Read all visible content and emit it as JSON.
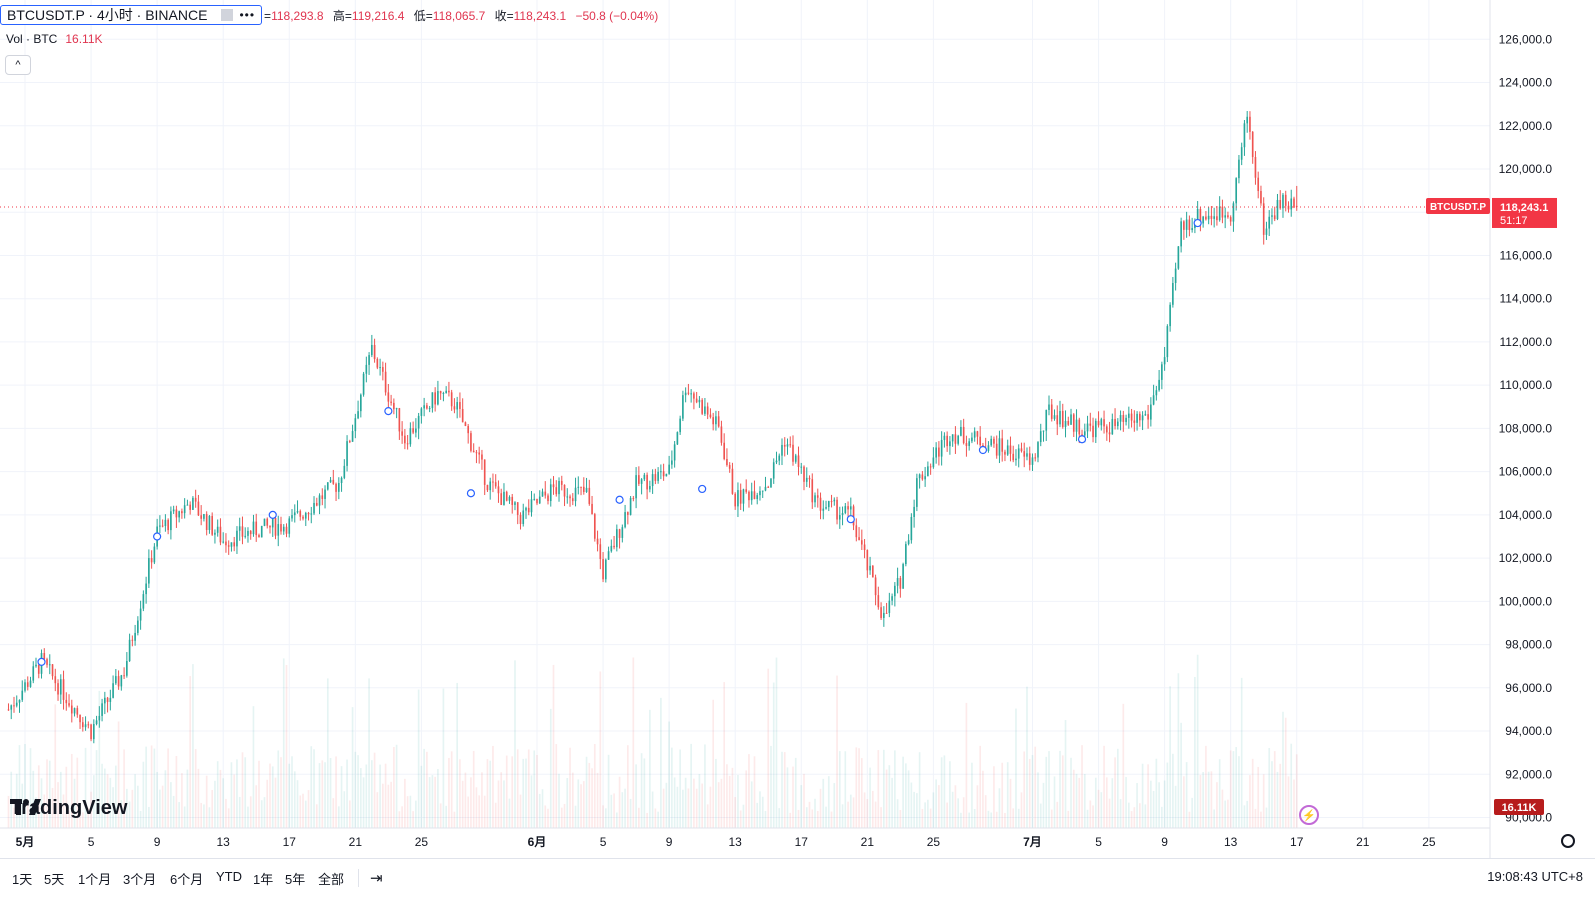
{
  "legend": {
    "symbol": "BTCUSDT.P · 4小时 · BINANCE",
    "menu": "•••",
    "ohlc_open_label": "=",
    "open": "118,293.8",
    "high_label": "高=",
    "high": "119,216.4",
    "low_label": "低=",
    "low": "118,065.7",
    "close_label": "收=",
    "close": "118,243.1",
    "change": "−50.8 (−0.04%)",
    "vol_label": "Vol · BTC",
    "vol_value": "16.11K"
  },
  "price_axis": {
    "labels": [
      "126,000.0",
      "124,000.0",
      "122,000.0",
      "120,000.0",
      "118,000.0",
      "116,000.0",
      "114,000.0",
      "112,000.0",
      "110,000.0",
      "108,000.0",
      "106,000.0",
      "104,000.0",
      "102,000.0",
      "100,000.0",
      "98,000.0",
      "96,000.0",
      "94,000.0",
      "92,000.0",
      "90,000.0"
    ],
    "current_symbol_tag": "BTCUSDT.P",
    "current_price_tag": "118,243.1",
    "countdown": "51:17",
    "volume_tag": "16.11K"
  },
  "time_axis": {
    "labels": [
      "5月",
      "5",
      "9",
      "13",
      "17",
      "21",
      "25",
      "6月",
      "5",
      "9",
      "13",
      "17",
      "21",
      "25",
      "7月",
      "5",
      "9",
      "13",
      "17",
      "21",
      "25"
    ]
  },
  "range_buttons": [
    "1天",
    "5天",
    "1个月",
    "3个月",
    "6个月",
    "YTD",
    "1年",
    "5年",
    "全部"
  ],
  "goto_icon": "calendar-goto-icon",
  "clock": "19:08:43 UTC+8",
  "logo_text": "TradingView",
  "colors": {
    "up": "#26a69a",
    "down": "#ef5350",
    "accent": "#2962ff",
    "price_line": "#f23645"
  },
  "chart_data": {
    "type": "candlestick",
    "title": "BTCUSDT.P · 4小时 · BINANCE",
    "xlabel": "",
    "ylabel": "",
    "ylim": [
      89700,
      126800
    ],
    "x_ticks": [
      "5月",
      "5",
      "9",
      "13",
      "17",
      "21",
      "25",
      "6月",
      "5",
      "9",
      "13",
      "17",
      "21",
      "25",
      "7月",
      "5",
      "9",
      "13",
      "17",
      "21",
      "25"
    ],
    "keypoints": [
      {
        "date": "4/30",
        "close": 95000
      },
      {
        "date": "5/2",
        "close": 97200
      },
      {
        "date": "5/5",
        "close": 94000
      },
      {
        "date": "5/7",
        "close": 96800
      },
      {
        "date": "5/9",
        "close": 103200
      },
      {
        "date": "5/11",
        "close": 104600
      },
      {
        "date": "5/13",
        "close": 102800
      },
      {
        "date": "5/15",
        "close": 103300
      },
      {
        "date": "5/17",
        "close": 103600
      },
      {
        "date": "5/20",
        "close": 105500
      },
      {
        "date": "5/22",
        "close": 111700
      },
      {
        "date": "5/24",
        "close": 107500
      },
      {
        "date": "5/26",
        "close": 109600
      },
      {
        "date": "5/27",
        "close": 109200
      },
      {
        "date": "5/29",
        "close": 105500
      },
      {
        "date": "5/31",
        "close": 103900
      },
      {
        "date": "6/2",
        "close": 105200
      },
      {
        "date": "6/4",
        "close": 105000
      },
      {
        "date": "6/5",
        "close": 101300
      },
      {
        "date": "6/7",
        "close": 105400
      },
      {
        "date": "6/9",
        "close": 106000
      },
      {
        "date": "6/10",
        "close": 110000
      },
      {
        "date": "6/12",
        "close": 108000
      },
      {
        "date": "6/13",
        "close": 104700
      },
      {
        "date": "6/15",
        "close": 105500
      },
      {
        "date": "6/16",
        "close": 107500
      },
      {
        "date": "6/18",
        "close": 104500
      },
      {
        "date": "6/20",
        "close": 104000
      },
      {
        "date": "6/22",
        "close": 99200
      },
      {
        "date": "6/23",
        "close": 101000
      },
      {
        "date": "6/24",
        "close": 105500
      },
      {
        "date": "6/26",
        "close": 107800
      },
      {
        "date": "6/28",
        "close": 107400
      },
      {
        "date": "7/1",
        "close": 106500
      },
      {
        "date": "7/2",
        "close": 108800
      },
      {
        "date": "7/4",
        "close": 108000
      },
      {
        "date": "7/6",
        "close": 108100
      },
      {
        "date": "7/8",
        "close": 108600
      },
      {
        "date": "7/9",
        "close": 111300
      },
      {
        "date": "7/10",
        "close": 117300
      },
      {
        "date": "7/11",
        "close": 117800
      },
      {
        "date": "7/13",
        "close": 118000
      },
      {
        "date": "7/14",
        "close": 122500
      },
      {
        "date": "7/15",
        "close": 117200
      },
      {
        "date": "7/16",
        "close": 118500
      },
      {
        "date": "7/17",
        "close": 118243
      }
    ],
    "last": {
      "open": 118293.8,
      "high": 119216.4,
      "low": 118065.7,
      "close": 118243.1
    },
    "grid": true,
    "legend": "top-left"
  }
}
